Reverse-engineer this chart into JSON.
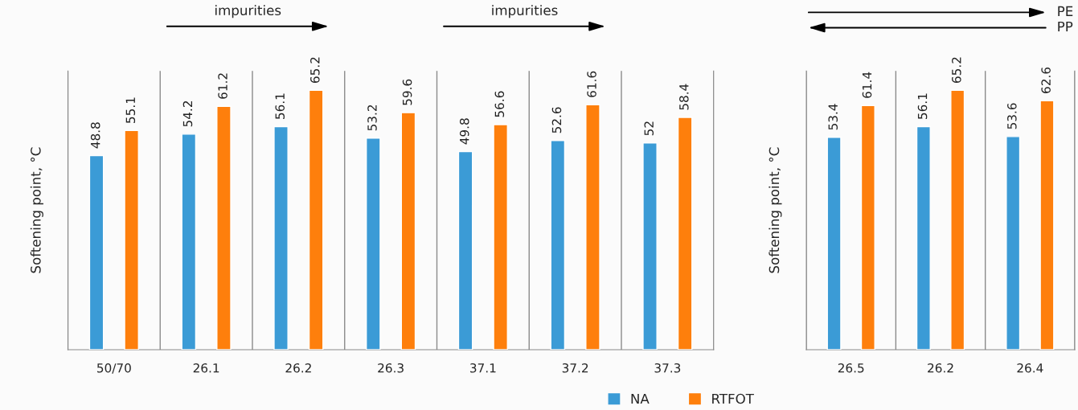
{
  "chart_data": [
    {
      "type": "bar",
      "ylabel": "Softening point, °C",
      "categories": [
        "50/70",
        "26.1",
        "26.2",
        "26.3",
        "37.1",
        "37.2",
        "37.3"
      ],
      "series": [
        {
          "name": "NA",
          "color": "#3b9bd6",
          "values": [
            48.8,
            54.2,
            56.1,
            53.2,
            49.8,
            52.6,
            52
          ]
        },
        {
          "name": "RTFOT",
          "color": "#fe7f0c",
          "values": [
            55.1,
            61.2,
            65.2,
            59.6,
            56.6,
            61.6,
            58.4
          ]
        }
      ],
      "data_labels": true,
      "tick_labels": "x",
      "grid": "x",
      "legend": "bottom",
      "annotations": [
        "impurities",
        "impurities"
      ]
    },
    {
      "type": "bar",
      "ylabel": "Softening point, °C",
      "categories": [
        "26.5",
        "26.2",
        "26.4"
      ],
      "series": [
        {
          "color": "#3b9bd6",
          "values": [
            53.4,
            56.1,
            53.6
          ]
        },
        {
          "color": "#fe7f0c",
          "values": [
            61.4,
            65.2,
            62.6
          ]
        }
      ],
      "data_labels": true,
      "tick_labels": "x",
      "grid": "x",
      "annotations": [
        "PE",
        "PP"
      ]
    }
  ]
}
